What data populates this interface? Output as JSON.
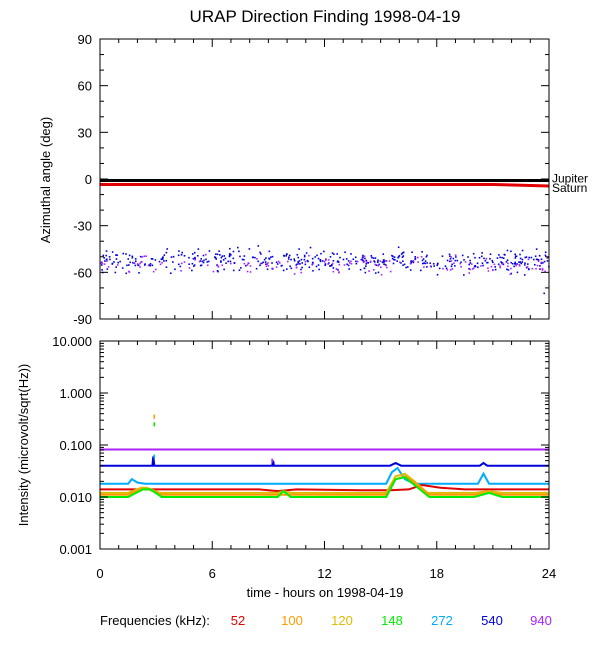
{
  "title": "URAP Direction Finding  1998-04-19",
  "x_axis": {
    "label": "time - hours on 1998-04-19",
    "range": [
      0,
      24
    ],
    "ticks": [
      0,
      6,
      12,
      18,
      24
    ],
    "tick_labels": [
      "0",
      "6",
      "12",
      "18",
      "24"
    ]
  },
  "legend": {
    "label": "Frequencies (kHz):",
    "items": [
      {
        "label": "52",
        "color": "#e00000"
      },
      {
        "label": "100",
        "color": "#ff9900"
      },
      {
        "label": "120",
        "color": "#ddbb00"
      },
      {
        "label": "148",
        "color": "#00ee00"
      },
      {
        "label": "272",
        "color": "#00aaff"
      },
      {
        "label": "540",
        "color": "#0000dd"
      },
      {
        "label": "940",
        "color": "#aa22ff"
      }
    ]
  },
  "chart_data": [
    {
      "type": "scatter",
      "title": "",
      "ylabel": "Azimuthal angle (deg)",
      "xlim": [
        0,
        24
      ],
      "ylim": [
        -90,
        90
      ],
      "yticks": [
        90,
        60,
        30,
        0,
        -30,
        -60,
        -90
      ],
      "ytick_labels": [
        "90",
        "60",
        "30",
        "0",
        "-30",
        "-60",
        "-90"
      ],
      "reference_lines": [
        {
          "name": "Jupiter",
          "color": "#000000",
          "x": [
            0,
            24
          ],
          "y": [
            -1,
            -1
          ]
        },
        {
          "name": "Saturn",
          "color": "#e00000",
          "x": [
            0,
            21,
            24
          ],
          "y": [
            -3.5,
            -3.5,
            -4.5
          ]
        }
      ],
      "scatter_series": [
        {
          "color": "#0000dd",
          "x_range": [
            0,
            24
          ],
          "y_mean": -52,
          "y_spread": 9,
          "count": 470
        },
        {
          "color": "#aa22ff",
          "x_range": [
            0,
            24
          ],
          "y_mean": -55,
          "y_spread": 7,
          "count": 150
        }
      ],
      "outliers": [
        {
          "x": 23.7,
          "y": -73
        }
      ]
    },
    {
      "type": "line",
      "title": "",
      "ylabel": "Intensity (microvolt/sqrt(Hz))",
      "yscale": "log",
      "xlim": [
        0,
        24
      ],
      "ylim": [
        0.001,
        10
      ],
      "yticks": [
        10,
        1,
        0.1,
        0.01,
        0.001
      ],
      "ytick_labels": [
        "10.000",
        "1.000",
        "0.100",
        "0.010",
        "0.001"
      ],
      "series": [
        {
          "name": "940",
          "color": "#aa22ff",
          "x": [
            0,
            24
          ],
          "y": [
            0.082,
            0.082
          ]
        },
        {
          "name": "540",
          "color": "#0000dd",
          "x": [
            0,
            2.8,
            2.85,
            2.9,
            8,
            9.2,
            9.25,
            9.3,
            15.5,
            15.8,
            16.1,
            16.4,
            20.3,
            20.5,
            20.7,
            24
          ],
          "y": [
            0.04,
            0.04,
            0.06,
            0.04,
            0.04,
            0.04,
            0.05,
            0.04,
            0.04,
            0.045,
            0.04,
            0.04,
            0.04,
            0.045,
            0.04,
            0.04
          ]
        },
        {
          "name": "272",
          "color": "#00aaff",
          "x": [
            0,
            1.5,
            1.7,
            2.0,
            2.4,
            9,
            15.3,
            15.6,
            15.9,
            16.3,
            16.8,
            20.2,
            20.5,
            20.8,
            24
          ],
          "y": [
            0.018,
            0.018,
            0.022,
            0.019,
            0.018,
            0.018,
            0.018,
            0.03,
            0.036,
            0.022,
            0.018,
            0.018,
            0.028,
            0.018,
            0.018
          ]
        },
        {
          "name": "52",
          "color": "#e00000",
          "x": [
            0,
            8.5,
            9.5,
            10.5,
            14,
            15.5,
            16.5,
            17.2,
            18.2,
            19.5,
            21,
            24
          ],
          "y": [
            0.014,
            0.014,
            0.013,
            0.014,
            0.0135,
            0.0135,
            0.014,
            0.017,
            0.015,
            0.014,
            0.014,
            0.014
          ]
        },
        {
          "name": "120",
          "color": "#ddbb00",
          "x": [
            0,
            1.5,
            2.2,
            2.5,
            3.2,
            8,
            9.5,
            9.8,
            10.2,
            15.3,
            15.8,
            16.3,
            16.8,
            17.5,
            20,
            20.8,
            21.5,
            24
          ],
          "y": [
            0.012,
            0.012,
            0.015,
            0.015,
            0.012,
            0.012,
            0.012,
            0.013,
            0.012,
            0.012,
            0.025,
            0.028,
            0.02,
            0.012,
            0.012,
            0.013,
            0.012,
            0.012
          ]
        },
        {
          "name": "100",
          "color": "#ff9900",
          "x": [
            0,
            1.5,
            2.2,
            2.6,
            3.3,
            8,
            15.3,
            15.8,
            16.3,
            16.9,
            17.6,
            20,
            20.8,
            21.5,
            24
          ],
          "y": [
            0.011,
            0.011,
            0.014,
            0.014,
            0.011,
            0.011,
            0.011,
            0.022,
            0.025,
            0.018,
            0.011,
            0.011,
            0.012,
            0.011,
            0.011
          ]
        },
        {
          "name": "148",
          "color": "#00ee00",
          "x": [
            0,
            1.5,
            2.3,
            2.7,
            3.3,
            8,
            9.5,
            9.8,
            10.2,
            15.3,
            15.8,
            16.3,
            16.9,
            17.6,
            20,
            20.8,
            21.5,
            24
          ],
          "y": [
            0.01,
            0.01,
            0.014,
            0.014,
            0.01,
            0.01,
            0.01,
            0.013,
            0.01,
            0.01,
            0.022,
            0.024,
            0.016,
            0.01,
            0.01,
            0.012,
            0.01,
            0.01
          ]
        }
      ],
      "spikes": [
        {
          "x": 2.9,
          "y": 0.35,
          "color": "#ff9900"
        },
        {
          "x": 2.9,
          "y": 0.25,
          "color": "#00ee00"
        },
        {
          "x": 2.9,
          "y": 0.06,
          "color": "#00aaff"
        },
        {
          "x": 9.2,
          "y": 0.05,
          "color": "#aa22ff"
        }
      ]
    }
  ]
}
